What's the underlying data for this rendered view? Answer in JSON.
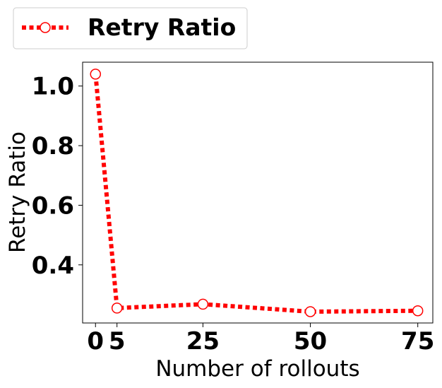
{
  "chart_data": {
    "type": "line",
    "x": [
      0,
      5,
      25,
      50,
      75
    ],
    "x_tick_labels": [
      "0",
      "5",
      "25",
      "50",
      "75"
    ],
    "y_tick_labels": [
      "0.4",
      "0.6",
      "0.8",
      "1.0"
    ],
    "y_ticks": [
      0.4,
      0.6,
      0.8,
      1.0
    ],
    "series": [
      {
        "name": "Retry Ratio",
        "values": [
          1.04,
          0.255,
          0.268,
          0.243,
          0.246
        ]
      }
    ],
    "xlabel": "Number of rollouts",
    "ylabel": "Retry Ratio",
    "xlim": [
      -3,
      78.5
    ],
    "ylim": [
      0.205,
      1.08
    ],
    "grid": false,
    "legend_position": "top-left, outside plot",
    "colors": {
      "line": "#ff0000",
      "marker_fill": "#ffffff",
      "marker_edge": "#ff0000"
    },
    "line_style": "dotted",
    "marker": "circle"
  }
}
